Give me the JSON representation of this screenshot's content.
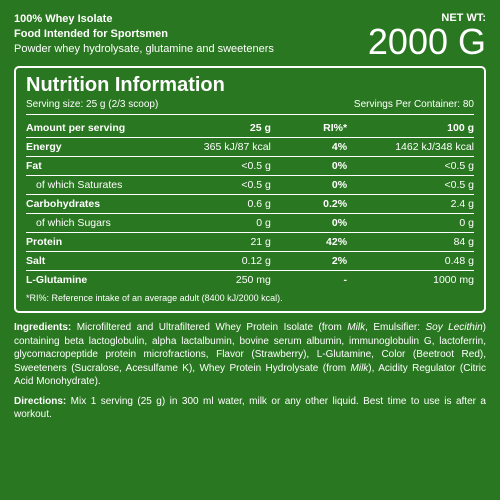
{
  "header": {
    "line1": "100% Whey Isolate",
    "line2": "Food Intended for Sportsmen",
    "line3": "Powder whey hydrolysate, glutamine and sweeteners",
    "netwt_label": "NET WT:",
    "weight": "2000 G"
  },
  "panel": {
    "title": "Nutrition Information",
    "serving_size": "Serving size: 25 g (2/3 scoop)",
    "servings_per": "Servings Per Container: 80",
    "columns": {
      "c1": "Amount per serving",
      "c2": "25 g",
      "c3": "RI%*",
      "c4": "100 g"
    },
    "rows": [
      {
        "label": "Energy",
        "per25": "365 kJ/87 kcal",
        "ri": "4%",
        "per100": "1462 kJ/348 kcal",
        "bold": true
      },
      {
        "label": "Fat",
        "per25": "<0.5 g",
        "ri": "0%",
        "per100": "<0.5 g",
        "bold": true
      },
      {
        "label": "of which Saturates",
        "per25": "<0.5 g",
        "ri": "0%",
        "per100": "<0.5 g",
        "sub": true
      },
      {
        "label": "Carbohydrates",
        "per25": "0.6 g",
        "ri": "0.2%",
        "per100": "2.4 g",
        "bold": true
      },
      {
        "label": "of which Sugars",
        "per25": "0 g",
        "ri": "0%",
        "per100": "0 g",
        "sub": true
      },
      {
        "label": "Protein",
        "per25": "21 g",
        "ri": "42%",
        "per100": "84 g",
        "bold": true
      },
      {
        "label": "Salt",
        "per25": "0.12 g",
        "ri": "2%",
        "per100": "0.48 g",
        "bold": true
      },
      {
        "label": "L-Glutamine",
        "per25": "250 mg",
        "ri": "-",
        "per100": "1000 mg",
        "bold": true,
        "last": true
      }
    ],
    "footnote": "*RI%: Reference intake of an average adult (8400 kJ/2000 kcal)."
  },
  "ingredients": {
    "label": "Ingredients:",
    "text": " Microfiltered and Ultrafiltered Whey Protein Isolate (from ",
    "milk1": "Milk",
    "text2": ", Emulsifier: ",
    "soy": "Soy Lecithin",
    "text3": ") containing beta lactoglobulin, alpha lactalbumin, bovine serum albumin, immunoglobulin G, lactoferrin, glycomacropeptide protein microfractions, Flavor (Strawberry), L-Glutamine, Color (Beetroot Red), Sweeteners (Sucralose, Acesulfame K), Whey Protein Hydrolysate (from ",
    "milk2": "Milk",
    "text4": "), Acidity Regulator (Citric Acid Monohydrate)."
  },
  "directions": {
    "label": "Directions:",
    "text": " Mix 1 serving (25 g) in 300 ml water, milk or any other liquid. Best time to use is after a workout."
  },
  "style": {
    "bg": "#2a7721",
    "fg": "#ffffff"
  }
}
